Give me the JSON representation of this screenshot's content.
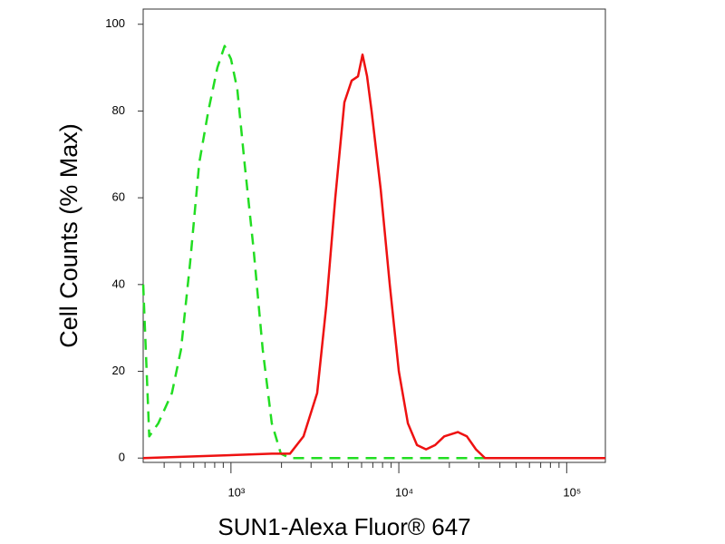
{
  "chart_data": {
    "type": "line",
    "xlabel": "SUN1-Alexa Fluor® 647",
    "ylabel": "Cell Counts (% Max)",
    "xscale": "log",
    "xlim": [
      300,
      170000
    ],
    "ylim": [
      -1,
      103.5
    ],
    "xticks": [
      {
        "value": 1000,
        "label": "10³"
      },
      {
        "value": 10000,
        "label": "10⁴"
      },
      {
        "value": 100000,
        "label": "10⁵"
      }
    ],
    "xminorticks": [
      400,
      500,
      600,
      700,
      800,
      900,
      2000,
      3000,
      4000,
      5000,
      6000,
      7000,
      8000,
      9000,
      20000,
      30000,
      40000,
      50000,
      60000,
      70000,
      80000,
      90000
    ],
    "yticks": [
      0,
      20,
      40,
      60,
      80,
      100
    ],
    "series": [
      {
        "color": "#22dd22",
        "dash": true,
        "x": [
          300,
          326,
          369,
          445,
          504,
          571,
          647,
          733,
          830,
          917,
          1000,
          1091,
          1205,
          1365,
          1546,
          1751,
          1983,
          2246,
          170000
        ],
        "values": [
          40,
          5,
          8,
          15,
          25,
          45,
          68,
          80,
          90,
          95,
          92,
          85,
          68,
          48,
          25,
          8,
          1,
          0,
          0
        ]
      },
      {
        "color": "#ee1111",
        "dash": false,
        "x": [
          300,
          1751,
          2246,
          2706,
          3262,
          3695,
          4183,
          4739,
          5236,
          5714,
          6077,
          6469,
          6883,
          7796,
          8831,
          10000,
          11326,
          12829,
          14530,
          16458,
          18638,
          22460,
          25430,
          28800,
          32620,
          170000
        ],
        "values": [
          0,
          1,
          1,
          5,
          15,
          35,
          60,
          82,
          87,
          88,
          93,
          88,
          80,
          62,
          40,
          20,
          8,
          3,
          2,
          3,
          5,
          6,
          5,
          2,
          0,
          0
        ]
      }
    ]
  }
}
